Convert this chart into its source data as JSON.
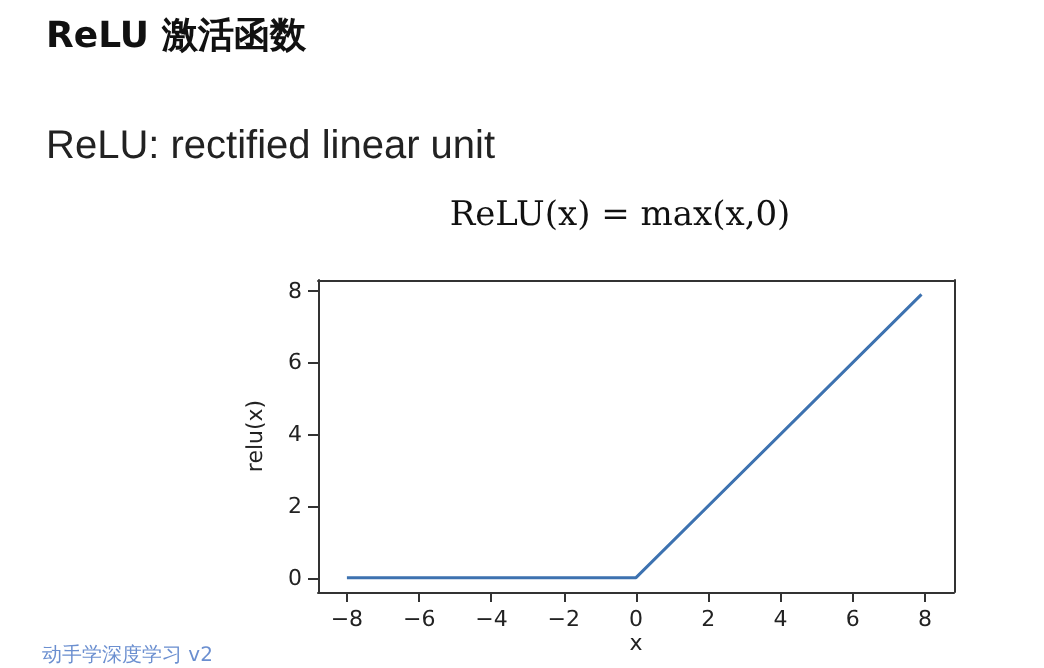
{
  "chart_data": {
    "type": "line",
    "title": "ReLU 激活函数",
    "subtitle": "ReLU: rectified linear unit",
    "annotations": [
      "ReLU(x) = max(x,0)",
      "动手学深度学习 v2"
    ],
    "xlabel": "x",
    "ylabel": "relu(x)",
    "x": [
      -8,
      0,
      7.9
    ],
    "series": [
      {
        "color": "#3d72b0",
        "values": [
          0,
          0,
          7.9
        ]
      }
    ],
    "xlim": [
      -8.8,
      8.8
    ],
    "ylim": [
      -0.4,
      8.3
    ],
    "xticks": [
      -8,
      -6,
      -4,
      -2,
      0,
      2,
      4,
      6,
      8
    ],
    "yticks": [
      0,
      2,
      4,
      6,
      8
    ],
    "grid": false,
    "marker": "none",
    "line_style": "solid"
  }
}
